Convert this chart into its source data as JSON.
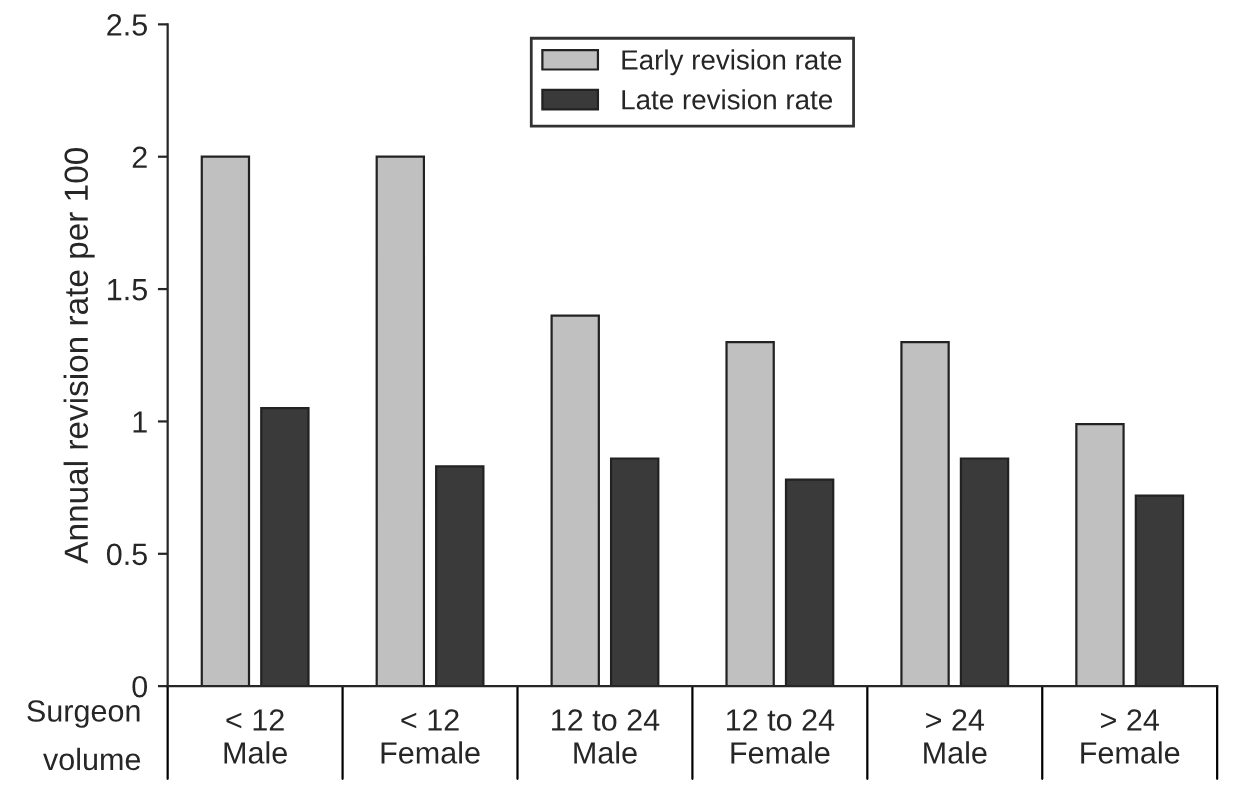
{
  "chart_data": {
    "type": "bar",
    "ylabel": "Annual revision rate per 100",
    "xlabel": "Surgeon\nvolume",
    "categories": [
      "< 12\nMale",
      "< 12\nFemale",
      "12 to 24\nMale",
      "12 to 24\nFemale",
      "> 24\nMale",
      "> 24\nFemale"
    ],
    "series": [
      {
        "name": "Early revision rate",
        "color": "#c0c0c0",
        "values": [
          2.0,
          2.0,
          1.4,
          1.3,
          1.3,
          0.99
        ]
      },
      {
        "name": "Late revision rate",
        "color": "#3a3a3a",
        "values": [
          1.05,
          0.83,
          0.86,
          0.78,
          0.86,
          0.72
        ]
      }
    ],
    "ylim": [
      0,
      2.5
    ],
    "yticks": [
      0,
      {
        "value": 0.5,
        "label": "0.5"
      },
      1,
      {
        "value": 1.5,
        "label": "1.5"
      },
      2,
      {
        "value": 2.5,
        "label": "2.5"
      }
    ],
    "grid": false,
    "legend": "top"
  }
}
